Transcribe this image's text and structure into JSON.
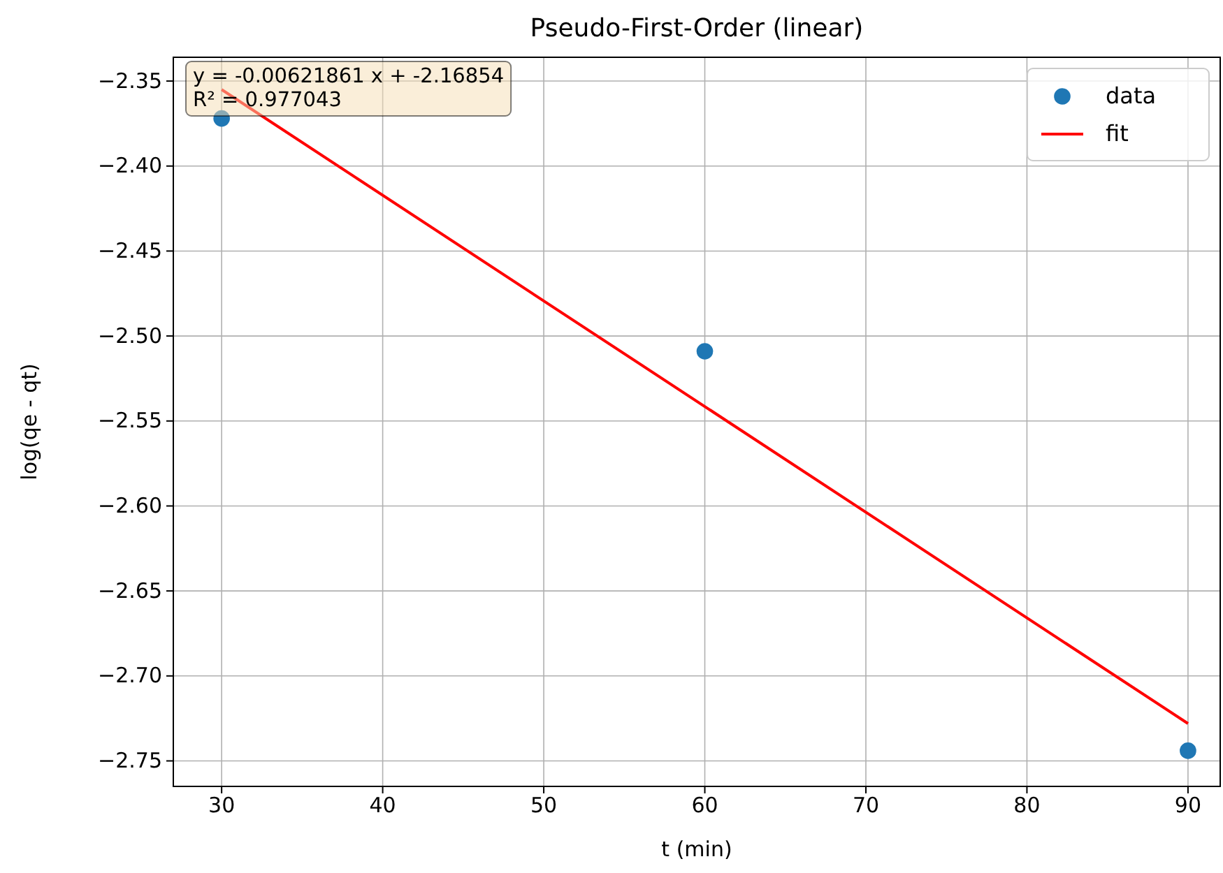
{
  "chart_data": {
    "type": "scatter",
    "title": "Pseudo-First-Order (linear)",
    "xlabel": "t (min)",
    "ylabel": "log(qe - qt)",
    "x": [
      30,
      60,
      90
    ],
    "series": [
      {
        "name": "data",
        "color": "#1f77b4",
        "marker": "circle",
        "values": [
          -2.372,
          -2.509,
          -2.744
        ]
      },
      {
        "name": "fit",
        "type": "line",
        "color": "#ff0000",
        "marker": "none",
        "line_style": "solid",
        "x": [
          30,
          90
        ],
        "values": [
          -2.355,
          -2.728
        ]
      }
    ],
    "xlim": [
      27,
      92
    ],
    "xticks": [
      30,
      40,
      50,
      60,
      70,
      80,
      90
    ],
    "ylim": [
      -2.765,
      -2.336
    ],
    "yticks": [
      {
        "value": -2.35,
        "label": "−2.35"
      },
      {
        "value": -2.4,
        "label": "−2.40"
      },
      {
        "value": -2.45,
        "label": "−2.45"
      },
      {
        "value": -2.5,
        "label": "−2.50"
      },
      {
        "value": -2.55,
        "label": "−2.55"
      },
      {
        "value": -2.6,
        "label": "−2.60"
      },
      {
        "value": -2.65,
        "label": "−2.65"
      },
      {
        "value": -2.7,
        "label": "−2.70"
      },
      {
        "value": -2.75,
        "label": "−2.75"
      }
    ],
    "grid": true,
    "legend": "top right",
    "annotations": [
      "y = -0.00621861 x + -2.16854",
      "R² = 0.977043"
    ]
  }
}
